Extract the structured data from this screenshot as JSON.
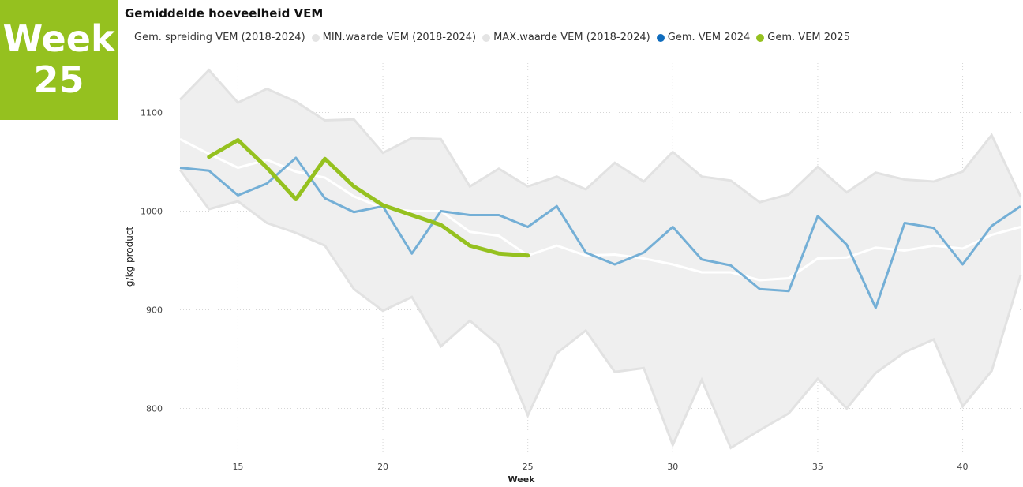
{
  "badge": {
    "line1": "Week",
    "line2": "25"
  },
  "colors": {
    "badge_bg": "#95c11f",
    "band_fill": "#efefef",
    "band_edge": "#e2e2e2",
    "avg_line": "#ffffff",
    "series_2024": "#74afd6",
    "series_2025": "#95c11f",
    "legend_2024_dot": "#0f6cbd",
    "legend_minmax_dot": "#e4e4e4"
  },
  "legend": [
    {
      "label": "Gem. spreiding VEM (2018-2024)",
      "color": ""
    },
    {
      "label": "MIN.waarde VEM (2018-2024)",
      "color": "#e4e4e4"
    },
    {
      "label": "MAX.waarde VEM (2018-2024)",
      "color": "#e4e4e4"
    },
    {
      "label": "Gem. VEM 2024",
      "color": "#0f6cbd"
    },
    {
      "label": "Gem. VEM 2025",
      "color": "#95c11f"
    }
  ],
  "chart_data": {
    "type": "line",
    "title": "Gemiddelde hoeveelheid VEM",
    "xlabel": "Week",
    "ylabel": "g/kg product",
    "xlim": [
      13,
      42
    ],
    "ylim": [
      750,
      1150
    ],
    "xticks": [
      15,
      20,
      25,
      30,
      35,
      40
    ],
    "yticks": [
      800,
      900,
      1000,
      1100
    ],
    "grid": true,
    "legend_position": "top",
    "x": [
      13,
      14,
      15,
      16,
      17,
      18,
      19,
      20,
      21,
      22,
      23,
      24,
      25,
      26,
      27,
      28,
      29,
      30,
      31,
      32,
      33,
      34,
      35,
      36,
      37,
      38,
      39,
      40,
      41,
      42
    ],
    "series": [
      {
        "name": "MAX.waarde VEM (2018-2024)",
        "values": [
          1113,
          1143,
          1110,
          1124,
          1111,
          1092,
          1093,
          1059,
          1074,
          1073,
          1025,
          1043,
          1025,
          1035,
          1022,
          1049,
          1030,
          1060,
          1035,
          1031,
          1009,
          1017,
          1045,
          1019,
          1039,
          1032,
          1030,
          1040,
          1077,
          1015
        ]
      },
      {
        "name": "MIN.waarde VEM (2018-2024)",
        "values": [
          1042,
          1002,
          1010,
          988,
          978,
          965,
          921,
          899,
          913,
          863,
          889,
          864,
          793,
          856,
          879,
          837,
          841,
          763,
          829,
          760,
          778,
          795,
          830,
          800,
          836,
          857,
          870,
          802,
          838,
          935
        ]
      },
      {
        "name": "Gem. spreiding VEM (2018-2024)",
        "values": [
          1073,
          1058,
          1044,
          1052,
          1040,
          1034,
          1015,
          1003,
          1000,
          1000,
          979,
          975,
          955,
          965,
          955,
          956,
          952,
          946,
          938,
          938,
          930,
          932,
          952,
          953,
          963,
          960,
          965,
          962,
          976,
          984
        ]
      },
      {
        "name": "Gem. VEM 2024",
        "values": [
          1044,
          1041,
          1016,
          1028,
          1054,
          1013,
          999,
          1005,
          957,
          1000,
          996,
          996,
          984,
          1005,
          958,
          946,
          958,
          984,
          951,
          945,
          921,
          919,
          995,
          966,
          902,
          988,
          983,
          946,
          985,
          1005
        ]
      },
      {
        "name": "Gem. VEM 2025",
        "x": [
          14,
          15,
          16,
          17,
          18,
          19,
          20,
          21,
          22,
          23,
          24,
          25
        ],
        "values": [
          1055,
          1072,
          1044,
          1012,
          1053,
          1025,
          1006,
          996,
          986,
          965,
          957,
          955
        ]
      }
    ]
  }
}
